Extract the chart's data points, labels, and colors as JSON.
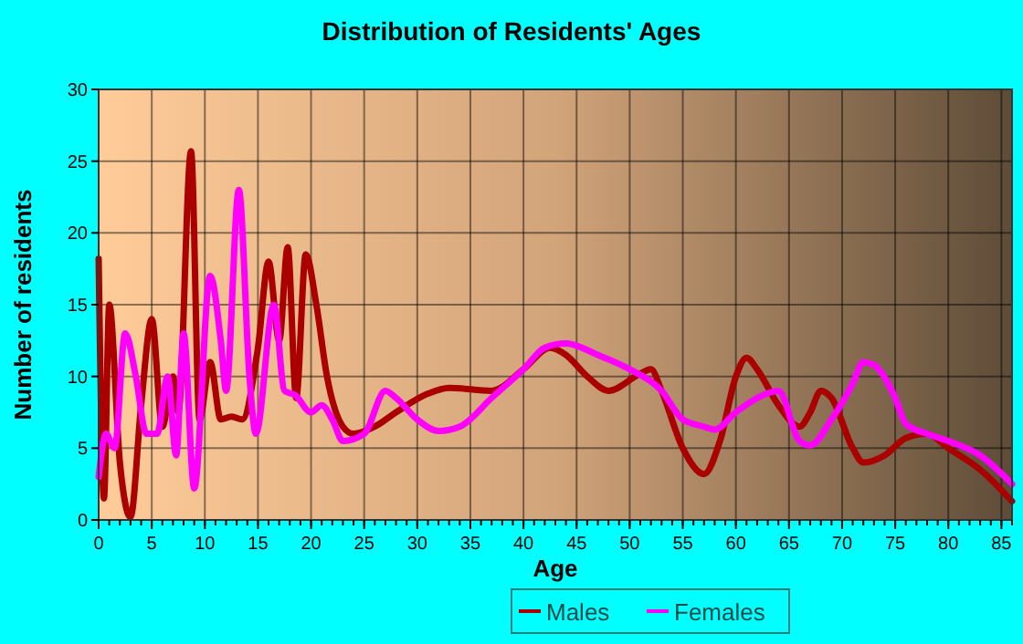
{
  "chart_data": {
    "type": "line",
    "title": "Distribution of Residents' Ages",
    "xlabel": "Age",
    "ylabel": "Number of residents",
    "xlim": [
      0,
      86
    ],
    "xticks": [
      0,
      5,
      10,
      15,
      20,
      25,
      30,
      35,
      40,
      45,
      50,
      55,
      60,
      65,
      70,
      75,
      80,
      85
    ],
    "ylim": [
      0,
      30
    ],
    "yticks": [
      0,
      5,
      10,
      15,
      20,
      25,
      30
    ],
    "grid": true,
    "legend": "bottom",
    "series": [
      {
        "name": "Males",
        "color": "#aa0000",
        "x": [
          0,
          0.5,
          1,
          2,
          3,
          4,
          5,
          6,
          7,
          7.5,
          8.7,
          9.5,
          10.5,
          11.5,
          12.5,
          13.5,
          15,
          16,
          17,
          17.8,
          18.6,
          19.5,
          20.5,
          21.5,
          23,
          24,
          26,
          28,
          31,
          33,
          37,
          40,
          42.5,
          44,
          46,
          48,
          51,
          52,
          53,
          55,
          57,
          58.5,
          60,
          61,
          62,
          64,
          66,
          67,
          68,
          69,
          71,
          72,
          74,
          76,
          78,
          80,
          83,
          86
        ],
        "values": [
          18.2,
          1.5,
          15,
          4,
          0.2,
          8,
          14,
          6.5,
          10,
          7.5,
          25.7,
          7,
          11,
          7,
          7.2,
          7,
          12,
          18,
          12.5,
          19,
          8.5,
          18.5,
          15,
          10,
          6.5,
          6,
          6.5,
          7.5,
          8.8,
          9.2,
          9,
          10.5,
          12,
          11.5,
          10,
          9,
          10.2,
          10.5,
          9,
          5,
          3.2,
          5.5,
          10,
          11.3,
          10.5,
          8,
          6.5,
          7.5,
          9,
          8.5,
          5,
          4,
          4.5,
          5.7,
          6,
          5,
          3.5,
          1.3
        ]
      },
      {
        "name": "Females",
        "color": "#ff00ff",
        "x": [
          0,
          0.7,
          1.5,
          2.5,
          3.5,
          4.5,
          5.5,
          6.5,
          7.3,
          8,
          9,
          10.5,
          11.5,
          12,
          13.2,
          14.2,
          14.8,
          16.5,
          17.5,
          18.5,
          20,
          21,
          22,
          23,
          25,
          27,
          28,
          30,
          32,
          34,
          37,
          40,
          42,
          44,
          47,
          50,
          53,
          55,
          57,
          58,
          60,
          62,
          64,
          66,
          67,
          69,
          71,
          72,
          73,
          75,
          76,
          78,
          80,
          83,
          86
        ],
        "values": [
          3,
          6,
          5,
          13,
          10,
          6,
          6,
          10,
          4.5,
          13,
          2.2,
          17,
          12.5,
          9,
          23,
          10,
          6,
          15,
          9,
          8.7,
          7.5,
          8,
          7,
          5.5,
          6,
          9,
          8.5,
          7,
          6.2,
          6.5,
          8.5,
          10.5,
          12,
          12.3,
          11.5,
          10.5,
          9,
          7,
          6.5,
          6.3,
          7.5,
          8.5,
          9,
          5.5,
          5.2,
          7,
          9.5,
          11,
          10.8,
          8.5,
          6.7,
          6,
          5.5,
          4.5,
          2.5
        ]
      }
    ]
  }
}
